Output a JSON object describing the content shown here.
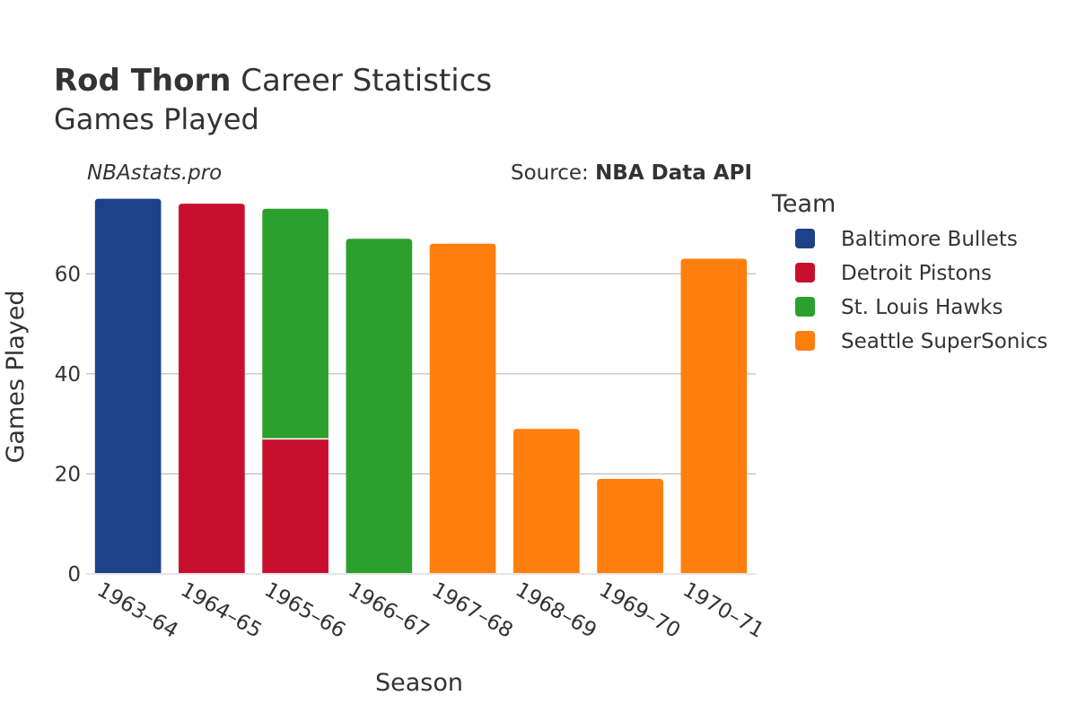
{
  "chart_data": {
    "type": "bar",
    "stacked": true,
    "title_bold": "Rod Thorn",
    "title_rest": "Career Statistics",
    "subtitle": "Games Played",
    "watermark": "NBAstats.pro",
    "source_prefix": "Source: ",
    "source_name": "NBA Data API",
    "xlabel": "Season",
    "ylabel": "Games Played",
    "ylim": [
      0,
      76
    ],
    "yticks": [
      0,
      20,
      40,
      60
    ],
    "grid": true,
    "legend_title": "Team",
    "legend_position": "right",
    "categories": [
      "1963–64",
      "1964–65",
      "1965–66",
      "1966–67",
      "1967–68",
      "1968–69",
      "1969–70",
      "1970–71"
    ],
    "series": [
      {
        "name": "Baltimore Bullets",
        "color": "#1d428a",
        "values": [
          75,
          0,
          0,
          0,
          0,
          0,
          0,
          0
        ]
      },
      {
        "name": "Detroit Pistons",
        "color": "#c8102e",
        "values": [
          0,
          74,
          27,
          0,
          0,
          0,
          0,
          0
        ]
      },
      {
        "name": "St. Louis Hawks",
        "color": "#2ca02c",
        "values": [
          0,
          0,
          46,
          67,
          0,
          0,
          0,
          0
        ]
      },
      {
        "name": "Seattle SuperSonics",
        "color": "#ff7f0e",
        "values": [
          0,
          0,
          0,
          0,
          66,
          29,
          19,
          63
        ]
      }
    ]
  }
}
